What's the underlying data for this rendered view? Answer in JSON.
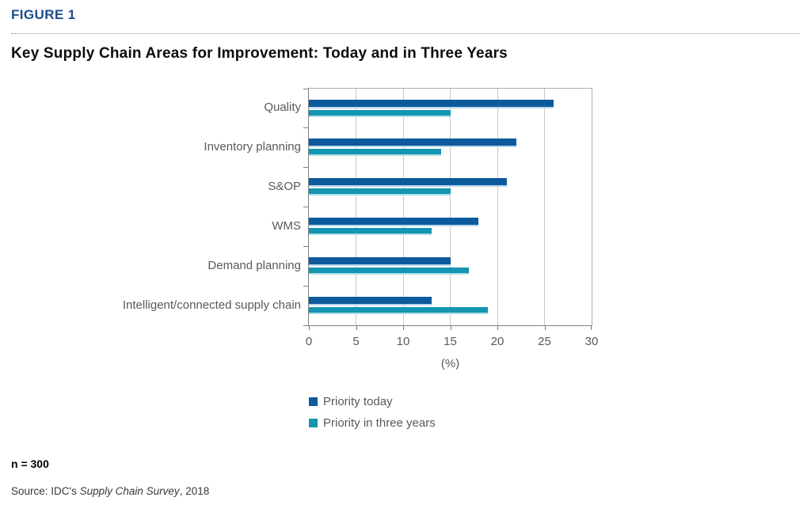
{
  "figure_label": "FIGURE 1",
  "title": "Key Supply Chain Areas for Improvement: Today and in Three Years",
  "chart_data": {
    "type": "bar",
    "orientation": "horizontal",
    "title": "Key Supply Chain Areas for Improvement: Today and in Three Years",
    "categories": [
      "Quality",
      "Inventory planning",
      "S&OP",
      "WMS",
      "Demand planning",
      "Intelligent/connected supply chain"
    ],
    "series": [
      {
        "name": "Priority today",
        "values": [
          26,
          22,
          21,
          18,
          15,
          13
        ],
        "color": "#0d5a9d",
        "edge_color": "#b7d7ec"
      },
      {
        "name": "Priority in three years",
        "values": [
          15,
          14,
          15,
          13,
          17,
          19
        ],
        "color": "#1495b1",
        "edge_color": "#b0dfe8"
      }
    ],
    "xlabel": "(%)",
    "xlim": [
      0,
      30
    ],
    "xticks": [
      0,
      5,
      10,
      15,
      20,
      25,
      30
    ],
    "grid": true,
    "legend_position": "bottom-left"
  },
  "footnotes": {
    "sample": "n = 300",
    "source_prefix": "Source: IDC's ",
    "source_italic": "Supply Chain Survey",
    "source_suffix": ", 2018"
  },
  "colors": {
    "figure_label": "#1e4d8c",
    "grid": "#c9c9c9",
    "axis": "#7f7f7f",
    "plot_border": "#ababab",
    "muted_text": "#595959"
  }
}
